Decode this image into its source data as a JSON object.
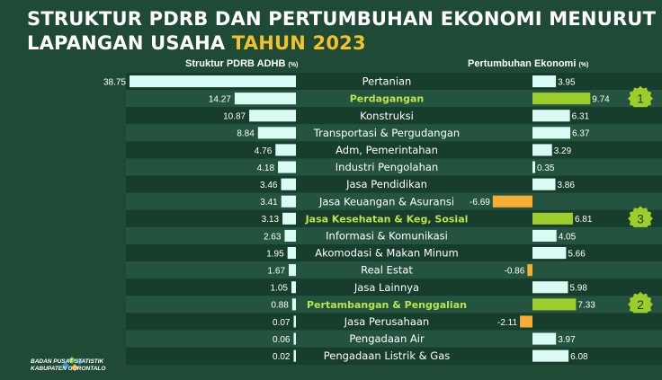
{
  "title": {
    "main": "STRUKTUR PDRB DAN PERTUMBUHAN EKONOMI MENURUT LAPANGAN USAHA",
    "year": "TAHUN 2023"
  },
  "colors": {
    "background": "#1f4a36",
    "row_dark": "#173d2c",
    "row_light": "#245440",
    "bar_structure": "#d9fbf4",
    "bar_growth": "#d9fbf4",
    "bar_growth_highlight": "#9ccd2a",
    "bar_negative": "#f6ae35",
    "highlight_label": "#b9e54a",
    "badge": "#9ccd2a"
  },
  "logo": {
    "line1": "BADAN PUSAT STATISTIK",
    "line2": "KABUPATEN GORONTALO"
  },
  "chart_data": {
    "type": "bar",
    "categories": [
      "Pertanian",
      "Perdagangan",
      "Konstruksi",
      "Transportasi & Pergudangan",
      "Adm, Pemerintahan",
      "Industri Pengolahan",
      "Jasa Pendidikan",
      "Jasa Keuangan & Asuransi",
      "Jasa Kesehatan & Keg, Sosial",
      "Informasi & Komunikasi",
      "Akomodasi & Makan Minum",
      "Real Estat",
      "Jasa Lainnya",
      "Pertambangan & Penggalian",
      "Jasa Perusahaan",
      "Pengadaan Air",
      "Pengadaan Listrik & Gas"
    ],
    "series": [
      {
        "name": "Struktur PDRB ADHB",
        "unit": "(%)",
        "values": [
          38.75,
          14.27,
          10.87,
          8.84,
          4.76,
          4.18,
          3.46,
          3.41,
          3.13,
          2.63,
          1.95,
          1.67,
          1.05,
          0.88,
          0.07,
          0.06,
          0.02
        ],
        "labels": [
          "38.75",
          "14.27",
          "10.87",
          "8.84",
          "4.76",
          "4.18",
          "3.46",
          "3.41",
          "3.13",
          "2.63",
          "1.95",
          "1.67",
          "1.05",
          "0.88",
          "0.07",
          "0.06",
          "0.02"
        ]
      },
      {
        "name": "Pertumbuhan Ekonomi",
        "unit": "(%)",
        "values": [
          3.95,
          9.74,
          6.31,
          6.37,
          3.29,
          0.35,
          3.86,
          -6.69,
          6.81,
          4.05,
          5.66,
          -0.86,
          5.98,
          7.33,
          -2.11,
          3.97,
          6.08
        ],
        "labels": [
          "3.95",
          "9.74",
          "6.31",
          "6.37",
          "3.29",
          "0.35",
          "3.86",
          "-6.69",
          "6.81",
          "4.05",
          "5.66",
          "-0.86",
          "5.98",
          "7.33",
          "-2.11",
          "3.97",
          "6.08"
        ]
      }
    ],
    "highlights": [
      {
        "category": "Perdagangan",
        "rank": "1"
      },
      {
        "category": "Jasa Kesehatan & Keg, Sosial",
        "rank": "3"
      },
      {
        "category": "Pertambangan & Penggalian",
        "rank": "2"
      }
    ]
  }
}
